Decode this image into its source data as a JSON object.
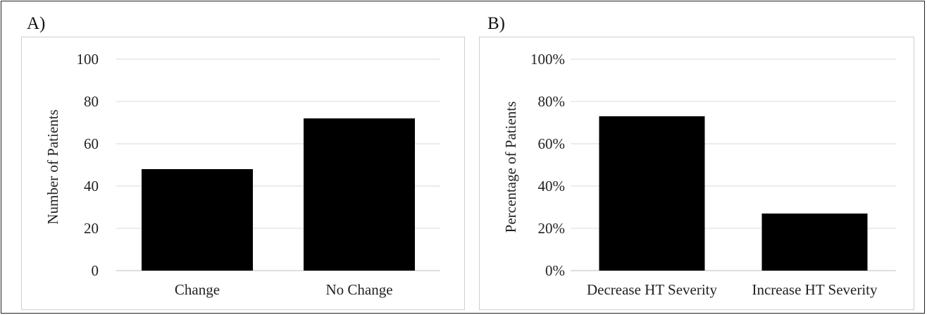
{
  "panel_letters": [
    "A)",
    "B)"
  ],
  "colors": {
    "bar": "#000000",
    "grid": "#d9d9d9",
    "frame": "#cfcfcf",
    "text": "#222222"
  },
  "chart_data": [
    {
      "type": "bar",
      "panel": "A)",
      "title": "",
      "xlabel": "",
      "ylabel": "Number of Patients",
      "categories": [
        "Change",
        "No Change"
      ],
      "values": [
        48,
        72
      ],
      "ylim": [
        0,
        100
      ],
      "yticks": [
        0,
        20,
        40,
        60,
        80,
        100
      ],
      "ytick_labels": [
        "0",
        "20",
        "40",
        "60",
        "80",
        "100"
      ],
      "grid": true,
      "legend": "none"
    },
    {
      "type": "bar",
      "panel": "B)",
      "title": "",
      "xlabel": "",
      "ylabel": "Percentage of Patients",
      "categories": [
        "Decrease HT Severity",
        "Increase HT Severity"
      ],
      "values": [
        73,
        27
      ],
      "ylim": [
        0,
        100
      ],
      "yticks": [
        0,
        20,
        40,
        60,
        80,
        100
      ],
      "ytick_labels": [
        "0%",
        "20%",
        "40%",
        "60%",
        "80%",
        "100%"
      ],
      "grid": true,
      "legend": "none"
    }
  ]
}
